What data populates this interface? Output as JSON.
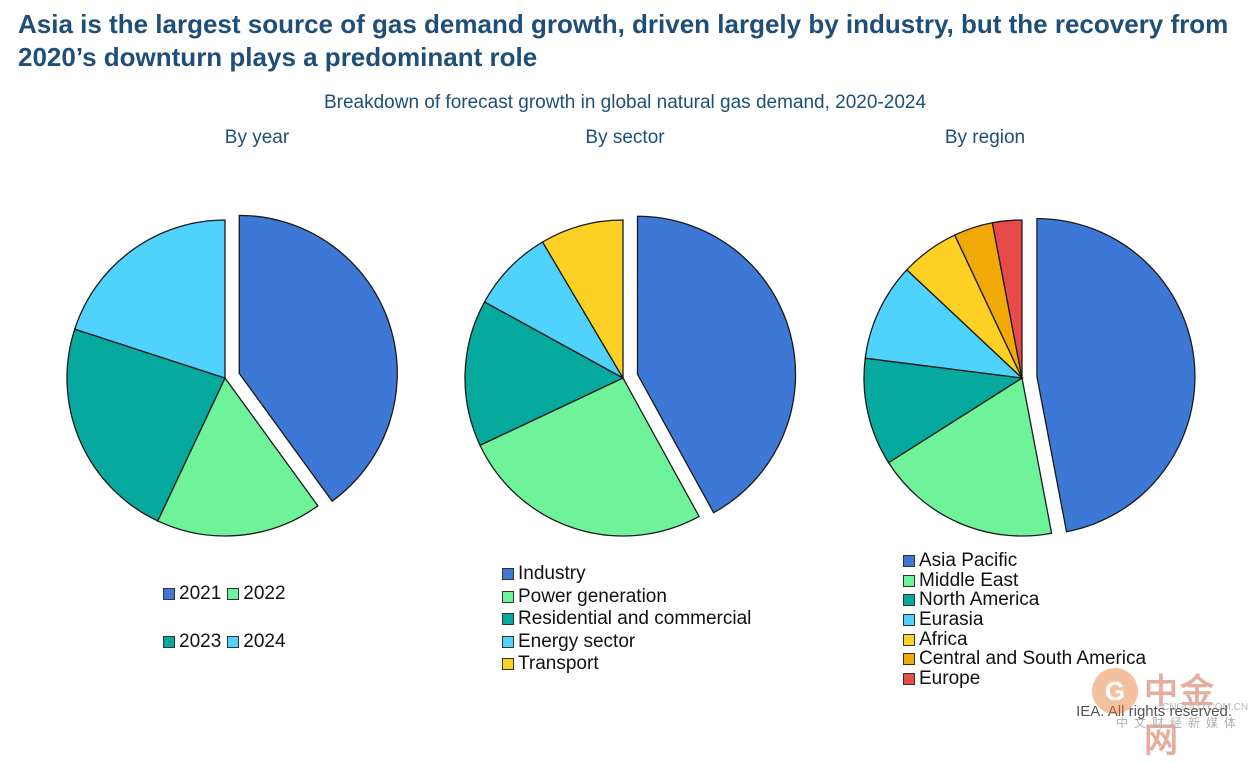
{
  "title": "Asia is the largest source of gas demand growth, driven largely by industry, but the recovery from 2020’s downturn plays a predominant role",
  "subtitle": "Breakdown of forecast growth in global natural gas demand, 2020-2024",
  "credit": "IEA. All rights reserved.",
  "watermark": {
    "logo": "G",
    "name": "中金网",
    "domain": "CNGOLD.COM.CN",
    "tagline": "中文财经新媒体"
  },
  "chart_data": [
    {
      "type": "pie",
      "title": "By year",
      "categories": [
        "2021",
        "2022",
        "2023",
        "2024"
      ],
      "values": [
        40,
        17,
        23,
        20
      ],
      "colors": [
        "#3d78d6",
        "#6ef39a",
        "#05a99d",
        "#4fd2fb"
      ],
      "exploded": [
        true,
        false,
        false,
        false
      ]
    },
    {
      "type": "pie",
      "title": "By sector",
      "categories": [
        "Industry",
        "Power generation",
        "Residential and commercial",
        "Energy sector",
        "Transport"
      ],
      "values": [
        42,
        26,
        15,
        8.5,
        8.5
      ],
      "colors": [
        "#3d78d6",
        "#6ef39a",
        "#05a99d",
        "#4fd2fb",
        "#fdd024"
      ],
      "exploded": [
        true,
        false,
        false,
        false,
        false
      ]
    },
    {
      "type": "pie",
      "title": "By region",
      "categories": [
        "Asia Pacific",
        "Middle East",
        "North America",
        "Eurasia",
        "Africa",
        "Central and South America",
        "Europe"
      ],
      "values": [
        47,
        19,
        11,
        10,
        6,
        4,
        3
      ],
      "colors": [
        "#3d78d6",
        "#6ef39a",
        "#05a99d",
        "#4fd2fb",
        "#fdd024",
        "#f1a907",
        "#e84a4a"
      ],
      "exploded": [
        true,
        false,
        false,
        false,
        false,
        false,
        false
      ]
    }
  ]
}
